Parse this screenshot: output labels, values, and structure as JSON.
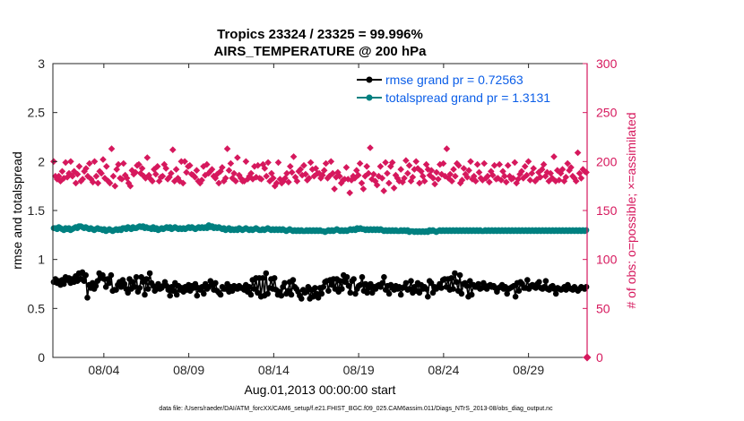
{
  "chart_data": {
    "type": "line",
    "title_line1": "Tropics 23324 / 23325 = 99.996%",
    "title_line2": "AIRS_TEMPERATURE @ 200 hPa",
    "xlabel": "Aug.01,2013 00:00:00 start",
    "ylabel_left": "rmse and totalspread",
    "ylabel_right": "# of obs: o=possible; ×=assimilated",
    "footnote": "data file: /Users/raeder/DAI/ATM_forcXX/CAM6_setup/f.e21.FHIST_BGC.f09_025.CAM6assim.011/Diags_NTrS_2013-08/obs_diag_output.nc",
    "xlim": [
      0.5,
      31.95
    ],
    "ylim_left": [
      0,
      3
    ],
    "ylim_right": [
      0,
      300
    ],
    "yticks_left": [
      "0",
      "0.5",
      "1",
      "1.5",
      "2",
      "2.5",
      "3"
    ],
    "yticks_right": [
      "0",
      "50",
      "100",
      "150",
      "200",
      "250",
      "300"
    ],
    "xticks": [
      {
        "day": 3.5,
        "label": "08/04"
      },
      {
        "day": 8.5,
        "label": "08/09"
      },
      {
        "day": 13.5,
        "label": "08/14"
      },
      {
        "day": 18.5,
        "label": "08/19"
      },
      {
        "day": 23.5,
        "label": "08/24"
      },
      {
        "day": 28.5,
        "label": "08/29"
      }
    ],
    "colors": {
      "rmse": "#000000",
      "spread": "#008080",
      "obs": "#d6185d",
      "legend_text": "#0b5ee8"
    },
    "series": [
      {
        "name": "rmse grand pr = 0.72563",
        "axis": "left",
        "marker": "circle",
        "values": [
          0.77,
          0.8,
          0.76,
          0.78,
          0.74,
          0.79,
          0.75,
          0.82,
          0.79,
          0.81,
          0.76,
          0.8,
          0.77,
          0.83,
          0.78,
          0.86,
          0.8,
          0.87,
          0.78,
          0.84,
          0.61,
          0.74,
          0.71,
          0.76,
          0.7,
          0.73,
          0.78,
          0.86,
          0.81,
          0.84,
          0.8,
          0.72,
          0.8,
          0.76,
          0.84,
          0.68,
          0.69,
          0.69,
          0.74,
          0.77,
          0.72,
          0.79,
          0.75,
          0.7,
          0.66,
          0.8,
          0.7,
          0.77,
          0.72,
          0.82,
          0.67,
          0.71,
          0.82,
          0.77,
          0.64,
          0.8,
          0.7,
          0.86,
          0.76,
          0.73,
          0.68,
          0.7,
          0.75,
          0.7,
          0.71,
          0.73,
          0.77,
          0.73,
          0.69,
          0.63,
          0.72,
          0.68,
          0.76,
          0.64,
          0.73,
          0.69,
          0.71,
          0.67,
          0.72,
          0.69,
          0.74,
          0.68,
          0.73,
          0.71,
          0.75,
          0.63,
          0.71,
          0.69,
          0.72,
          0.65,
          0.75,
          0.7,
          0.72,
          0.78,
          0.74,
          0.69,
          0.76,
          0.68,
          0.66,
          0.64,
          0.72,
          0.7,
          0.7,
          0.75,
          0.67,
          0.72,
          0.68,
          0.73,
          0.72,
          0.7,
          0.73,
          0.71,
          0.71,
          0.69,
          0.74,
          0.67,
          0.72,
          0.64,
          0.79,
          0.7,
          0.81,
          0.66,
          0.81,
          0.62,
          0.81,
          0.63,
          0.86,
          0.65,
          0.71,
          0.8,
          0.7,
          0.81,
          0.69,
          0.64,
          0.67,
          0.63,
          0.72,
          0.76,
          0.65,
          0.68,
          0.77,
          0.64,
          0.79,
          0.72,
          0.7,
          0.67,
          0.63,
          0.6,
          0.69,
          0.66,
          0.67,
          0.72,
          0.6,
          0.69,
          0.62,
          0.71,
          0.65,
          0.61,
          0.71,
          0.65,
          0.72,
          0.77,
          0.78,
          0.68,
          0.79,
          0.74,
          0.8,
          0.7,
          0.8,
          0.67,
          0.78,
          0.7,
          0.84,
          0.77,
          0.82,
          0.73,
          0.66,
          0.78,
          0.8,
          0.65,
          0.7,
          0.73,
          0.74,
          0.82,
          0.68,
          0.75,
          0.66,
          0.71,
          0.75,
          0.66,
          0.72,
          0.7,
          0.73,
          0.74,
          0.72,
          0.76,
          0.82,
          0.69,
          0.73,
          0.65,
          0.74,
          0.71,
          0.69,
          0.73,
          0.7,
          0.72,
          0.64,
          0.71,
          0.72,
          0.76,
          0.69,
          0.7,
          0.78,
          0.66,
          0.72,
          0.68,
          0.76,
          0.66,
          0.74,
          0.7,
          0.72,
          0.7,
          0.62,
          0.78,
          0.76,
          0.66,
          0.72,
          0.7,
          0.72,
          0.75,
          0.71,
          0.79,
          0.8,
          0.72,
          0.8,
          0.69,
          0.81,
          0.7,
          0.86,
          0.77,
          0.68,
          0.84,
          0.65,
          0.75,
          0.76,
          0.73,
          0.62,
          0.78,
          0.64,
          0.74,
          0.72,
          0.72,
          0.75,
          0.7,
          0.71,
          0.76,
          0.73,
          0.7,
          0.73,
          0.74,
          0.72,
          0.73,
          0.71,
          0.67,
          0.71,
          0.72,
          0.74,
          0.7,
          0.72,
          0.65,
          0.7,
          0.71,
          0.72,
          0.73,
          0.62,
          0.76,
          0.68,
          0.77,
          0.75,
          0.71,
          0.71,
          0.79,
          0.7,
          0.73,
          0.74,
          0.72,
          0.71,
          0.75,
          0.77,
          0.71,
          0.7,
          0.72,
          0.78,
          0.7,
          0.69,
          0.72,
          0.73,
          0.7,
          0.65,
          0.71,
          0.7,
          0.69,
          0.7,
          0.72,
          0.69,
          0.74,
          0.71,
          0.7,
          0.69,
          0.72,
          0.7,
          0.68,
          0.7,
          0.72,
          0.71,
          0.7,
          0.72
        ]
      },
      {
        "name": "totalspread grand pr = 1.3131",
        "axis": "left",
        "marker": "circle",
        "values": [
          1.32,
          1.32,
          1.31,
          1.33,
          1.32,
          1.31,
          1.3,
          1.32,
          1.31,
          1.32,
          1.3,
          1.31,
          1.32,
          1.33,
          1.32,
          1.34,
          1.34,
          1.33,
          1.32,
          1.33,
          1.32,
          1.31,
          1.32,
          1.31,
          1.3,
          1.31,
          1.32,
          1.31,
          1.31,
          1.3,
          1.31,
          1.29,
          1.3,
          1.31,
          1.3,
          1.29,
          1.3,
          1.31,
          1.3,
          1.31,
          1.3,
          1.32,
          1.32,
          1.31,
          1.33,
          1.32,
          1.31,
          1.33,
          1.32,
          1.32,
          1.33,
          1.34,
          1.33,
          1.34,
          1.32,
          1.33,
          1.32,
          1.32,
          1.31,
          1.33,
          1.31,
          1.32,
          1.3,
          1.31,
          1.32,
          1.31,
          1.32,
          1.33,
          1.32,
          1.33,
          1.31,
          1.32,
          1.33,
          1.32,
          1.31,
          1.32,
          1.31,
          1.32,
          1.31,
          1.32,
          1.33,
          1.32,
          1.33,
          1.32,
          1.31,
          1.32,
          1.33,
          1.32,
          1.33,
          1.32,
          1.33,
          1.32,
          1.35,
          1.33,
          1.34,
          1.32,
          1.33,
          1.32,
          1.33,
          1.32,
          1.31,
          1.32,
          1.3,
          1.31,
          1.32,
          1.3,
          1.31,
          1.3,
          1.31,
          1.3,
          1.32,
          1.31,
          1.3,
          1.31,
          1.32,
          1.31,
          1.3,
          1.31,
          1.3,
          1.31,
          1.32,
          1.31,
          1.3,
          1.3,
          1.31,
          1.3,
          1.31,
          1.32,
          1.31,
          1.3,
          1.31,
          1.3,
          1.31,
          1.3,
          1.31,
          1.3,
          1.31,
          1.3,
          1.29,
          1.3,
          1.31,
          1.3,
          1.29,
          1.3,
          1.29,
          1.3,
          1.29,
          1.3,
          1.29,
          1.29,
          1.3,
          1.29,
          1.3,
          1.29,
          1.3,
          1.29,
          1.3,
          1.29,
          1.3,
          1.29,
          1.29,
          1.28,
          1.29,
          1.3,
          1.29,
          1.3,
          1.29,
          1.3,
          1.31,
          1.3,
          1.29,
          1.3,
          1.29,
          1.3,
          1.29,
          1.3,
          1.31,
          1.3,
          1.31,
          1.3,
          1.32,
          1.31,
          1.32,
          1.31,
          1.31,
          1.3,
          1.31,
          1.3,
          1.31,
          1.3,
          1.31,
          1.3,
          1.31,
          1.3,
          1.31,
          1.3,
          1.29,
          1.3,
          1.29,
          1.3,
          1.29,
          1.3,
          1.29,
          1.3,
          1.29,
          1.29,
          1.3,
          1.29,
          1.3,
          1.29,
          1.3,
          1.28,
          1.29,
          1.29,
          1.28,
          1.29,
          1.28,
          1.29,
          1.28,
          1.29,
          1.28,
          1.29,
          1.28,
          1.3,
          1.29,
          1.3,
          1.29,
          1.28,
          1.29,
          1.3,
          1.29,
          1.3,
          1.29,
          1.3,
          1.29,
          1.3,
          1.29,
          1.3,
          1.29,
          1.3,
          1.29,
          1.3,
          1.29,
          1.3,
          1.29,
          1.3,
          1.29,
          1.3,
          1.29,
          1.3,
          1.29,
          1.3,
          1.29,
          1.3,
          1.29,
          1.29,
          1.3,
          1.29,
          1.3,
          1.29,
          1.3,
          1.29,
          1.3,
          1.29,
          1.3,
          1.29,
          1.3,
          1.29,
          1.3,
          1.29,
          1.3,
          1.29,
          1.3,
          1.29,
          1.3,
          1.29,
          1.3,
          1.29,
          1.3,
          1.29,
          1.3,
          1.29,
          1.3,
          1.29,
          1.3,
          1.29,
          1.3,
          1.29,
          1.3,
          1.29,
          1.3,
          1.29,
          1.3,
          1.29,
          1.3,
          1.29,
          1.3,
          1.29,
          1.3,
          1.29,
          1.3,
          1.29,
          1.3,
          1.29,
          1.3,
          1.29,
          1.3,
          1.29,
          1.3,
          1.29,
          1.3,
          1.29,
          1.3,
          1.29,
          1.3,
          1.29,
          1.3
        ]
      },
      {
        "name": "obs possible/assimilated",
        "axis": "right",
        "marker": "cross",
        "legend": false,
        "values": [
          200,
          185,
          182,
          185,
          180,
          190,
          183,
          199,
          184,
          188,
          200,
          185,
          190,
          178,
          187,
          195,
          180,
          182,
          190,
          193,
          185,
          198,
          182,
          179,
          200,
          185,
          178,
          190,
          188,
          202,
          183,
          195,
          180,
          178,
          213,
          185,
          175,
          192,
          197,
          183,
          182,
          198,
          186,
          183,
          178,
          175,
          191,
          187,
          189,
          196,
          197,
          188,
          193,
          185,
          183,
          204,
          186,
          182,
          180,
          192,
          187,
          195,
          180,
          184,
          185,
          197,
          193,
          182,
          184,
          188,
          212,
          180,
          192,
          183,
          180,
          200,
          178,
          200,
          189,
          195,
          196,
          187,
          186,
          184,
          191,
          180,
          178,
          181,
          195,
          186,
          197,
          188,
          190,
          192,
          185,
          183,
          187,
          178,
          190,
          194,
          180,
          183,
          213,
          191,
          198,
          183,
          188,
          180,
          204,
          186,
          183,
          180,
          180,
          200,
          182,
          185,
          188,
          182,
          195,
          184,
          196,
          183,
          182,
          197,
          193,
          185,
          199,
          180,
          188,
          183,
          175,
          178,
          199,
          182,
          178,
          180,
          183,
          188,
          179,
          195,
          189,
          205,
          184,
          180,
          190,
          192,
          186,
          196,
          187,
          181,
          183,
          199,
          192,
          185,
          193,
          188,
          188,
          183,
          186,
          191,
          198,
          183,
          185,
          200,
          188,
          172,
          184,
          189,
          185,
          178,
          181,
          182,
          194,
          182,
          168,
          181,
          185,
          183,
          191,
          186,
          198,
          178,
          172,
          185,
          195,
          188,
          214,
          182,
          187,
          180,
          176,
          185,
          195,
          183,
          170,
          199,
          188,
          178,
          195,
          199,
          173,
          186,
          183,
          180,
          192,
          179,
          183,
          201,
          188,
          196,
          180,
          184,
          192,
          200,
          193,
          178,
          190,
          185,
          180,
          197,
          192,
          186,
          191,
          183,
          177,
          189,
          182,
          197,
          187,
          198,
          185,
          213,
          183,
          187,
          180,
          192,
          185,
          198,
          196,
          178,
          181,
          193,
          187,
          184,
          191,
          200,
          182,
          185,
          180,
          197,
          189,
          183,
          181,
          198,
          183,
          185,
          179,
          190,
          186,
          196,
          182,
          183,
          197,
          181,
          190,
          185,
          179,
          196,
          185,
          182,
          183,
          199,
          178,
          182,
          187,
          190,
          183,
          195,
          186,
          200,
          181,
          188,
          193,
          180,
          182,
          189,
          184,
          192,
          197,
          185,
          189,
          180,
          188,
          183,
          205,
          180,
          191,
          181,
          188,
          192,
          180,
          184,
          198,
          191,
          194,
          185,
          183,
          180,
          209,
          188,
          183,
          192,
          190,
          189
        ]
      }
    ]
  }
}
